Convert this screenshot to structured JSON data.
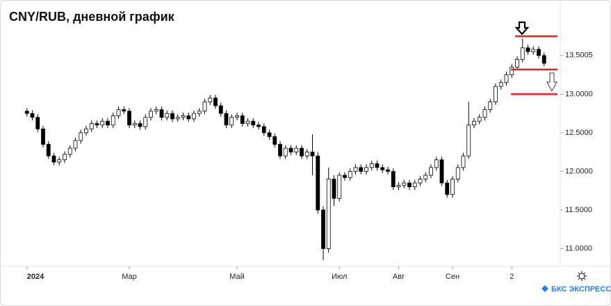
{
  "chart_data": {
    "type": "candlestick",
    "title": "CNY/RUB, дневной график",
    "x": [
      1,
      2,
      3,
      4,
      5,
      6,
      7,
      8,
      9,
      10,
      11,
      12,
      13,
      14,
      15,
      16,
      17,
      18,
      19,
      20,
      21,
      22,
      23,
      24,
      25,
      26,
      27,
      28,
      29,
      30,
      31,
      32,
      33,
      34,
      35,
      36,
      37,
      38,
      39,
      40,
      41,
      42,
      43,
      44,
      45,
      46,
      47,
      48,
      49,
      50,
      51,
      52,
      53,
      54,
      55,
      56,
      57,
      58,
      59,
      60,
      61,
      62,
      63,
      64,
      65,
      66,
      67,
      68,
      69,
      70,
      71,
      72,
      73,
      74,
      75,
      76,
      77,
      78,
      79,
      80,
      81,
      82,
      83,
      84,
      85,
      86,
      87,
      88,
      89,
      90,
      91,
      92,
      93,
      94,
      95,
      96,
      97
    ],
    "open": [
      12.78,
      12.75,
      12.7,
      12.55,
      12.35,
      12.2,
      12.12,
      12.15,
      12.22,
      12.3,
      12.4,
      12.5,
      12.55,
      12.62,
      12.6,
      12.65,
      12.6,
      12.72,
      12.8,
      12.78,
      12.6,
      12.62,
      12.58,
      12.7,
      12.78,
      12.8,
      12.7,
      12.75,
      12.68,
      12.7,
      12.72,
      12.68,
      12.75,
      12.78,
      12.9,
      12.95,
      12.85,
      12.75,
      12.6,
      12.7,
      12.72,
      12.62,
      12.65,
      12.6,
      12.58,
      12.5,
      12.45,
      12.35,
      12.2,
      12.3,
      12.25,
      12.3,
      12.2,
      12.25,
      12.2,
      11.5,
      11.0,
      11.9,
      11.65,
      11.95,
      11.92,
      12.0,
      12.05,
      12.0,
      12.05,
      12.1,
      12.05,
      12.02,
      12.0,
      11.8,
      11.82,
      11.85,
      11.8,
      11.85,
      11.9,
      11.95,
      12.05,
      12.15,
      11.85,
      11.7,
      11.9,
      12.05,
      12.2,
      12.6,
      12.65,
      12.7,
      12.8,
      12.9,
      13.1,
      13.15,
      13.25,
      13.35,
      13.45,
      13.6,
      13.55,
      13.58,
      13.5
    ],
    "high": [
      12.82,
      12.79,
      12.74,
      12.59,
      12.39,
      12.24,
      12.19,
      12.26,
      12.34,
      12.44,
      12.54,
      12.59,
      12.66,
      12.66,
      12.69,
      12.69,
      12.76,
      12.84,
      12.84,
      12.82,
      12.66,
      12.66,
      12.74,
      12.82,
      12.84,
      12.84,
      12.79,
      12.79,
      12.74,
      12.76,
      12.76,
      12.79,
      12.82,
      12.94,
      12.99,
      12.99,
      12.89,
      12.79,
      12.74,
      12.76,
      12.76,
      12.69,
      12.69,
      12.64,
      12.62,
      12.54,
      12.49,
      12.39,
      12.34,
      12.34,
      12.34,
      12.34,
      12.29,
      12.48,
      12.25,
      11.55,
      12.05,
      11.95,
      11.99,
      11.99,
      12.04,
      12.09,
      12.09,
      12.09,
      12.14,
      12.14,
      12.09,
      12.06,
      12.04,
      11.86,
      11.89,
      11.89,
      11.89,
      11.94,
      11.99,
      12.09,
      12.19,
      12.19,
      11.89,
      11.94,
      12.09,
      12.24,
      12.9,
      12.69,
      12.74,
      12.84,
      12.94,
      13.14,
      13.19,
      13.29,
      13.39,
      13.49,
      13.72,
      13.64,
      13.62,
      13.62,
      13.54
    ],
    "low": [
      12.71,
      12.66,
      12.51,
      12.31,
      12.16,
      12.08,
      12.08,
      12.11,
      12.18,
      12.26,
      12.36,
      12.46,
      12.51,
      12.56,
      12.56,
      12.56,
      12.56,
      12.68,
      12.74,
      12.56,
      12.56,
      12.54,
      12.54,
      12.66,
      12.74,
      12.66,
      12.66,
      12.64,
      12.64,
      12.66,
      12.64,
      12.64,
      12.71,
      12.74,
      12.86,
      12.81,
      12.71,
      12.56,
      12.56,
      12.66,
      12.58,
      12.58,
      12.56,
      12.54,
      12.46,
      12.41,
      12.31,
      12.16,
      12.16,
      12.21,
      12.21,
      12.16,
      12.16,
      11.95,
      11.45,
      10.85,
      10.95,
      11.55,
      11.61,
      11.88,
      11.88,
      11.96,
      11.96,
      11.96,
      12.01,
      12.01,
      11.98,
      11.96,
      11.76,
      11.76,
      11.78,
      11.76,
      11.76,
      11.81,
      11.86,
      11.91,
      12.01,
      11.81,
      11.66,
      11.66,
      11.86,
      12.01,
      12.16,
      12.56,
      12.61,
      12.66,
      12.76,
      12.86,
      13.06,
      13.11,
      13.21,
      13.31,
      13.41,
      13.51,
      13.51,
      13.46,
      13.36
    ],
    "close": [
      12.75,
      12.7,
      12.55,
      12.35,
      12.2,
      12.12,
      12.15,
      12.22,
      12.3,
      12.4,
      12.5,
      12.55,
      12.62,
      12.6,
      12.65,
      12.6,
      12.72,
      12.8,
      12.78,
      12.6,
      12.62,
      12.58,
      12.7,
      12.78,
      12.8,
      12.7,
      12.75,
      12.68,
      12.7,
      12.72,
      12.68,
      12.75,
      12.78,
      12.9,
      12.95,
      12.85,
      12.75,
      12.6,
      12.7,
      12.72,
      12.62,
      12.65,
      12.6,
      12.58,
      12.5,
      12.45,
      12.35,
      12.2,
      12.3,
      12.25,
      12.3,
      12.2,
      12.25,
      12.2,
      11.5,
      11.0,
      11.9,
      11.65,
      11.95,
      11.92,
      12.0,
      12.05,
      12.0,
      12.05,
      12.1,
      12.05,
      12.02,
      12.0,
      11.8,
      11.82,
      11.85,
      11.8,
      11.85,
      11.9,
      11.95,
      12.05,
      12.15,
      11.85,
      11.7,
      11.9,
      12.05,
      12.2,
      12.6,
      12.65,
      12.7,
      12.8,
      12.9,
      13.1,
      13.15,
      13.25,
      13.35,
      13.45,
      13.6,
      13.55,
      13.58,
      13.5,
      13.4
    ],
    "levels": [
      13.75,
      13.32,
      13.0
    ],
    "level_color": "#e0252b",
    "xlim": [
      0,
      100
    ],
    "xticks": [
      {
        "value": 1,
        "label": "2024"
      },
      {
        "value": 20,
        "label": "Мар"
      },
      {
        "value": 40,
        "label": "Май"
      },
      {
        "value": 59,
        "label": "Июл"
      },
      {
        "value": 70,
        "label": "Авг"
      },
      {
        "value": 80,
        "label": "Сен"
      },
      {
        "value": 91,
        "label": "2"
      }
    ],
    "ylim": [
      10.77,
      13.85
    ],
    "yticks": [
      {
        "value": 13.5005,
        "label": "13.5005"
      },
      {
        "value": 13,
        "label": "13.0000"
      },
      {
        "value": 12.5,
        "label": "12.5000"
      },
      {
        "value": 12,
        "label": "12.0000"
      },
      {
        "value": 11.5,
        "label": "11.5000"
      },
      {
        "value": 11,
        "label": "11.0000"
      }
    ],
    "up_color": "#ffffff",
    "down_color": "#000000"
  },
  "brand": "БКС ЭКСПРЕСС"
}
